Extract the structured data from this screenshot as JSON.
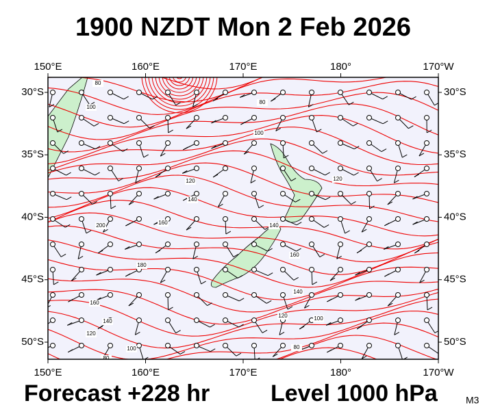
{
  "header": {
    "title": "1900 NZDT Mon 2 Feb 2026"
  },
  "map": {
    "lon_labels": [
      "150°E",
      "160°E",
      "170°E",
      "180°",
      "170°W"
    ],
    "lat_labels": [
      "30°S",
      "35°S",
      "40°S",
      "45°S",
      "50°S"
    ],
    "contour_labels": [
      "80",
      "100",
      "80",
      "100",
      "120",
      "140",
      "160",
      "200",
      "120",
      "140",
      "160",
      "180",
      "160",
      "140",
      "120",
      "100",
      "80",
      "140",
      "120",
      "100",
      "80"
    ]
  },
  "footer": {
    "forecast": "Forecast +228 hr",
    "level": "Level 1000 hPa",
    "code": "M3"
  }
}
